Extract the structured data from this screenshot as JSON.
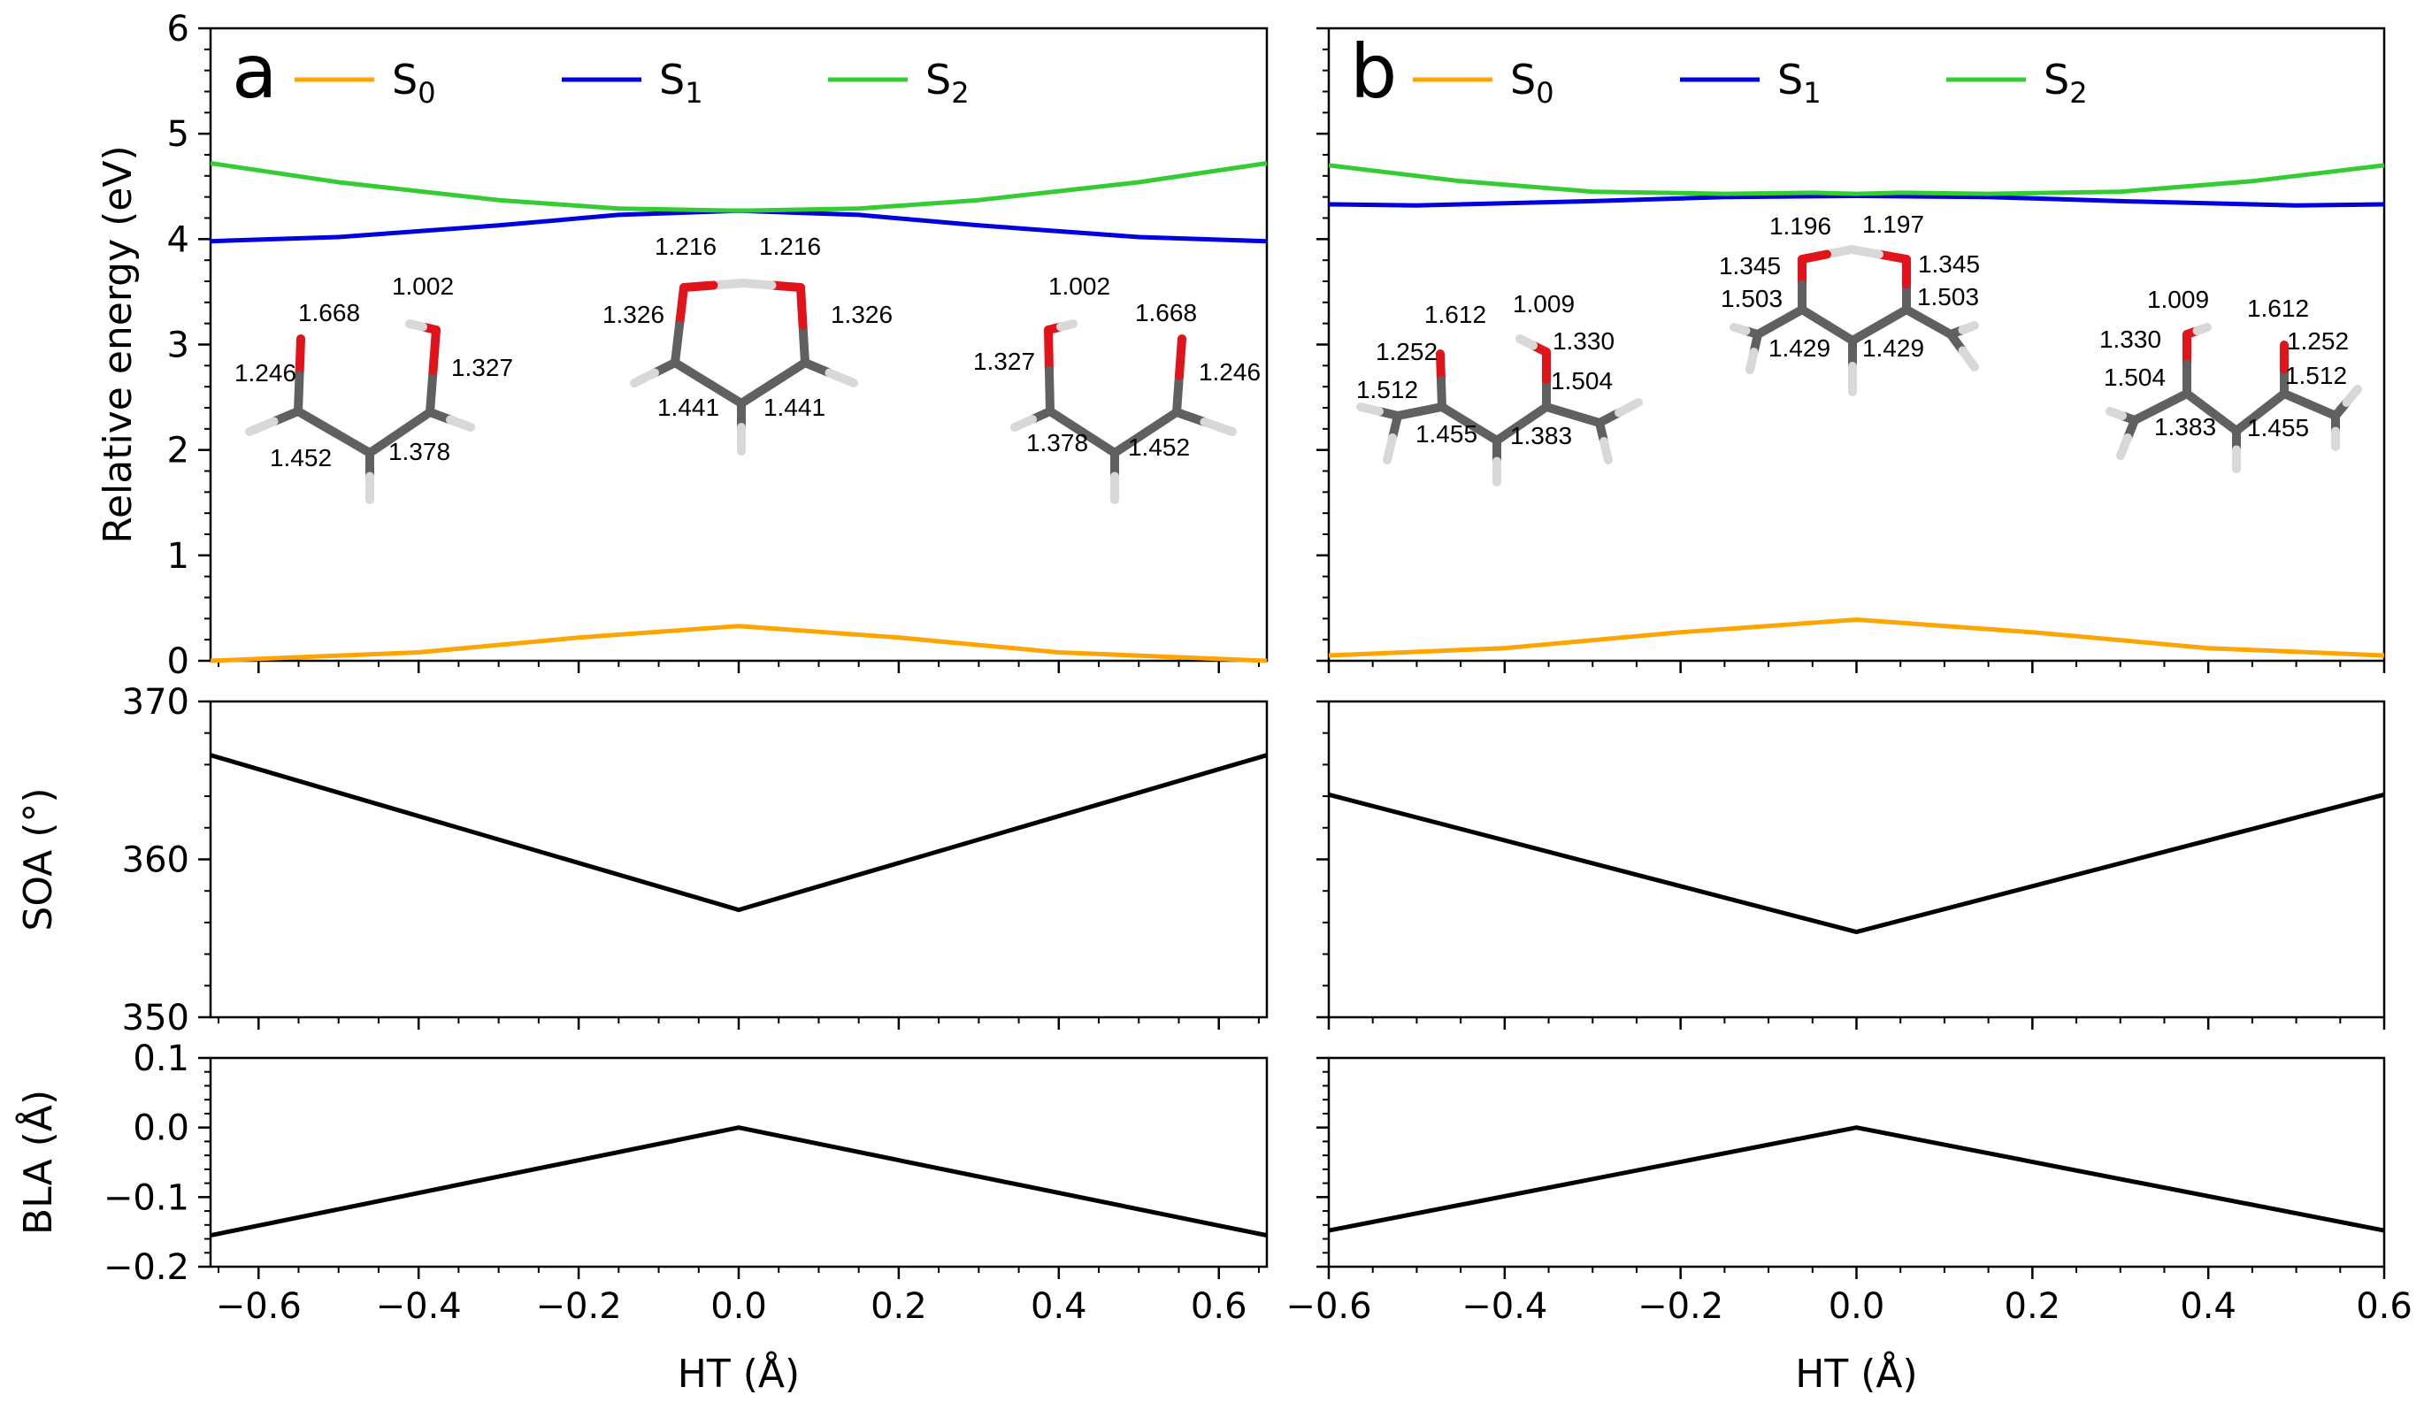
{
  "chart_data": [
    {
      "panel": "a",
      "type": "line",
      "energy": {
        "ylabel": "Relative energy (eV)",
        "ylim": [
          0,
          6
        ],
        "yticks": [
          0,
          1,
          2,
          3,
          4,
          5,
          6
        ],
        "legend_position": "top",
        "series": [
          {
            "name": "S0",
            "label": "S",
            "sub": "0",
            "color": "#ffa500",
            "x": [
              -0.66,
              -0.4,
              -0.2,
              0.0,
              0.2,
              0.4,
              0.66
            ],
            "y": [
              0.0,
              0.08,
              0.22,
              0.33,
              0.22,
              0.08,
              0.0
            ]
          },
          {
            "name": "S1",
            "label": "S",
            "sub": "1",
            "color": "#0000dd",
            "x": [
              -0.66,
              -0.5,
              -0.3,
              -0.15,
              0.0,
              0.15,
              0.3,
              0.5,
              0.66
            ],
            "y": [
              3.98,
              4.02,
              4.13,
              4.23,
              4.27,
              4.23,
              4.13,
              4.02,
              3.98
            ]
          },
          {
            "name": "S2",
            "label": "S",
            "sub": "2",
            "color": "#33cc33",
            "x": [
              -0.66,
              -0.5,
              -0.3,
              -0.15,
              0.0,
              0.15,
              0.3,
              0.5,
              0.66
            ],
            "y": [
              4.72,
              4.54,
              4.37,
              4.29,
              4.27,
              4.29,
              4.37,
              4.54,
              4.72
            ]
          }
        ]
      },
      "soa": {
        "ylabel": "SOA (°)",
        "ylim": [
          350,
          370
        ],
        "yticks": [
          350,
          360,
          370
        ],
        "series": [
          {
            "color": "#000000",
            "x": [
              -0.66,
              0.0,
              0.66
            ],
            "y": [
              366.6,
              356.8,
              366.6
            ]
          }
        ]
      },
      "bla": {
        "ylabel": "BLA (Å)",
        "ylim": [
          -0.2,
          0.1
        ],
        "yticks": [
          -0.2,
          -0.1,
          0.0,
          0.1
        ],
        "ytick_labels": [
          "−0.2",
          "−0.1",
          "0.0",
          "0.1"
        ],
        "series": [
          {
            "color": "#000000",
            "x": [
              -0.66,
              0.0,
              0.66
            ],
            "y": [
              -0.155,
              0.0,
              -0.155
            ]
          }
        ]
      },
      "xlabel": "HT (Å)",
      "xlim": [
        -0.66,
        0.66
      ],
      "xticks": [
        -0.6,
        -0.4,
        -0.2,
        0.0,
        0.2,
        0.4,
        0.6
      ],
      "xtick_labels": [
        "−0.6",
        "−0.4",
        "−0.2",
        "0.0",
        "0.2",
        "0.4",
        "0.6"
      ],
      "molecules": [
        {
          "bond_labels": [
            "1.002",
            "1.668",
            "1.246",
            "1.327",
            "1.452",
            "1.378"
          ]
        },
        {
          "bond_labels": [
            "1.216",
            "1.216",
            "1.326",
            "1.326",
            "1.441",
            "1.441"
          ]
        },
        {
          "bond_labels": [
            "1.002",
            "1.668",
            "1.327",
            "1.246",
            "1.378",
            "1.452"
          ]
        }
      ]
    },
    {
      "panel": "b",
      "type": "line",
      "energy": {
        "ylabel": "",
        "ylim": [
          0,
          6
        ],
        "yticks": [
          0,
          1,
          2,
          3,
          4,
          5,
          6
        ],
        "legend_position": "top",
        "series": [
          {
            "name": "S0",
            "label": "S",
            "sub": "0",
            "color": "#ffa500",
            "x": [
              -0.6,
              -0.4,
              -0.2,
              0.0,
              0.2,
              0.4,
              0.6
            ],
            "y": [
              0.05,
              0.12,
              0.27,
              0.39,
              0.27,
              0.12,
              0.05
            ]
          },
          {
            "name": "S1",
            "label": "S",
            "sub": "1",
            "color": "#0000dd",
            "x": [
              -0.6,
              -0.5,
              -0.3,
              -0.15,
              0.0,
              0.15,
              0.3,
              0.5,
              0.6
            ],
            "y": [
              4.33,
              4.32,
              4.36,
              4.4,
              4.41,
              4.4,
              4.36,
              4.32,
              4.33
            ]
          },
          {
            "name": "S2",
            "label": "S",
            "sub": "2",
            "color": "#33cc33",
            "x": [
              -0.6,
              -0.45,
              -0.3,
              -0.15,
              -0.05,
              0.0,
              0.05,
              0.15,
              0.3,
              0.45,
              0.6
            ],
            "y": [
              4.7,
              4.55,
              4.45,
              4.43,
              4.44,
              4.43,
              4.44,
              4.43,
              4.45,
              4.55,
              4.7
            ]
          }
        ]
      },
      "soa": {
        "ylabel": "",
        "ylim": [
          350,
          370
        ],
        "yticks": [
          350,
          360,
          370
        ],
        "series": [
          {
            "color": "#000000",
            "x": [
              -0.6,
              0.0,
              0.6
            ],
            "y": [
              364.1,
              355.4,
              364.1
            ]
          }
        ]
      },
      "bla": {
        "ylabel": "",
        "ylim": [
          -0.2,
          0.1
        ],
        "yticks": [
          -0.2,
          -0.1,
          0.0,
          0.1
        ],
        "ytick_labels": [
          "−0.2",
          "−0.1",
          "0.0",
          "0.1"
        ],
        "series": [
          {
            "color": "#000000",
            "x": [
              -0.6,
              0.0,
              0.6
            ],
            "y": [
              -0.148,
              0.0,
              -0.148
            ]
          }
        ]
      },
      "xlabel": "HT (Å)",
      "xlim": [
        -0.6,
        0.6
      ],
      "xticks": [
        -0.6,
        -0.4,
        -0.2,
        0.0,
        0.2,
        0.4,
        0.6
      ],
      "xtick_labels": [
        "−0.6",
        "−0.4",
        "−0.2",
        "0.0",
        "0.2",
        "0.4",
        "0.6"
      ],
      "molecules": [
        {
          "bond_labels": [
            "1.009",
            "1.612",
            "1.252",
            "1.330",
            "1.512",
            "1.504",
            "1.455",
            "1.383"
          ]
        },
        {
          "bond_labels": [
            "1.196",
            "1.197",
            "1.345",
            "1.345",
            "1.503",
            "1.503",
            "1.429",
            "1.429"
          ]
        },
        {
          "bond_labels": [
            "1.009",
            "1.612",
            "1.330",
            "1.252",
            "1.504",
            "1.512",
            "1.383",
            "1.455"
          ]
        }
      ]
    }
  ]
}
